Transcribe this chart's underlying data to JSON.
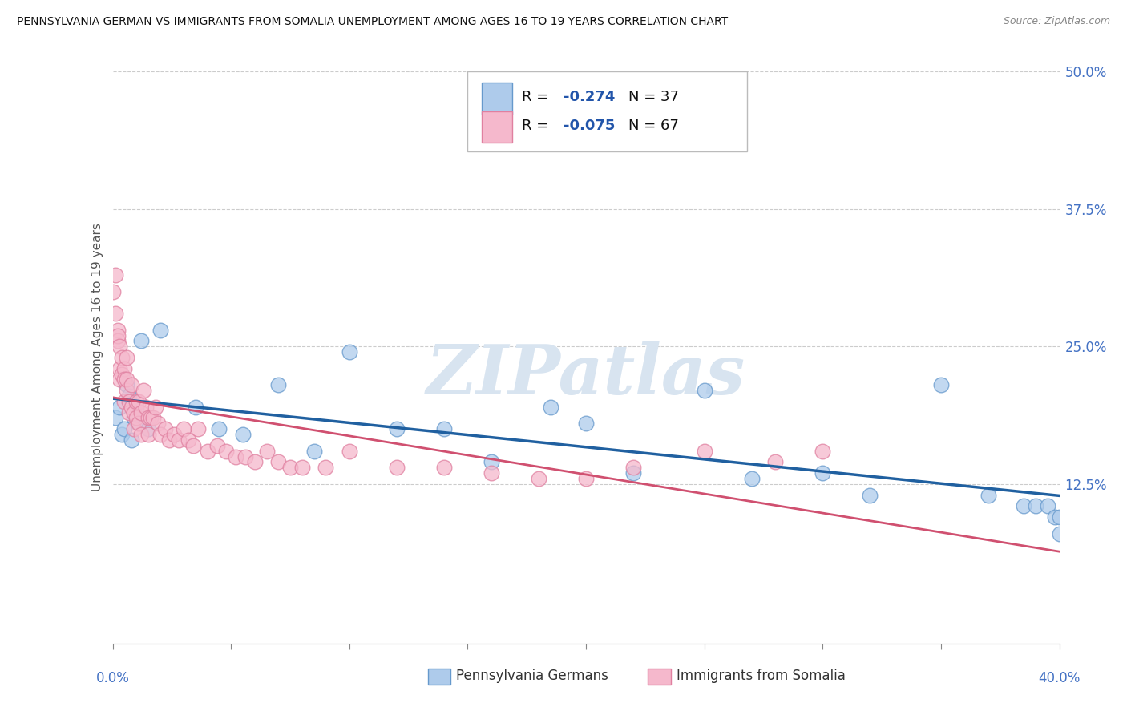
{
  "title": "PENNSYLVANIA GERMAN VS IMMIGRANTS FROM SOMALIA UNEMPLOYMENT AMONG AGES 16 TO 19 YEARS CORRELATION CHART",
  "source": "Source: ZipAtlas.com",
  "ylabel": "Unemployment Among Ages 16 to 19 years",
  "xlim": [
    0.0,
    0.4
  ],
  "ylim": [
    -0.02,
    0.5
  ],
  "ytop": 0.5,
  "ybottom": 0.0,
  "blue_R": -0.274,
  "blue_N": 37,
  "pink_R": -0.075,
  "pink_N": 67,
  "blue_fill": "#AECBEB",
  "pink_fill": "#F5B8CC",
  "blue_edge": "#6699CC",
  "pink_edge": "#E080A0",
  "blue_line": "#2060A0",
  "pink_line": "#D05070",
  "text_blue": "#2255AA",
  "grid_color": "#CCCCCC",
  "watermark_color": "#D8E4F0",
  "right_tick_color": "#4472C4",
  "blue_x": [
    0.001,
    0.003,
    0.004,
    0.005,
    0.006,
    0.007,
    0.008,
    0.009,
    0.01,
    0.011,
    0.012,
    0.015,
    0.02,
    0.035,
    0.045,
    0.055,
    0.07,
    0.085,
    0.1,
    0.12,
    0.14,
    0.16,
    0.185,
    0.2,
    0.22,
    0.25,
    0.27,
    0.3,
    0.32,
    0.35,
    0.37,
    0.385,
    0.39,
    0.395,
    0.398,
    0.4,
    0.4
  ],
  "blue_y": [
    0.185,
    0.195,
    0.17,
    0.175,
    0.215,
    0.205,
    0.165,
    0.185,
    0.195,
    0.18,
    0.255,
    0.175,
    0.265,
    0.195,
    0.175,
    0.17,
    0.215,
    0.155,
    0.245,
    0.175,
    0.175,
    0.145,
    0.195,
    0.18,
    0.135,
    0.21,
    0.13,
    0.135,
    0.115,
    0.215,
    0.115,
    0.105,
    0.105,
    0.105,
    0.095,
    0.095,
    0.08
  ],
  "pink_x": [
    0.0,
    0.001,
    0.001,
    0.002,
    0.002,
    0.002,
    0.003,
    0.003,
    0.003,
    0.004,
    0.004,
    0.005,
    0.005,
    0.005,
    0.006,
    0.006,
    0.006,
    0.007,
    0.007,
    0.008,
    0.008,
    0.009,
    0.009,
    0.01,
    0.01,
    0.011,
    0.011,
    0.012,
    0.012,
    0.013,
    0.014,
    0.015,
    0.015,
    0.016,
    0.017,
    0.018,
    0.019,
    0.02,
    0.022,
    0.024,
    0.026,
    0.028,
    0.03,
    0.032,
    0.034,
    0.036,
    0.04,
    0.044,
    0.048,
    0.052,
    0.056,
    0.06,
    0.065,
    0.07,
    0.075,
    0.08,
    0.09,
    0.1,
    0.12,
    0.14,
    0.16,
    0.18,
    0.2,
    0.22,
    0.25,
    0.28,
    0.3
  ],
  "pink_y": [
    0.3,
    0.315,
    0.28,
    0.265,
    0.255,
    0.26,
    0.25,
    0.23,
    0.22,
    0.24,
    0.225,
    0.23,
    0.22,
    0.2,
    0.24,
    0.21,
    0.22,
    0.2,
    0.19,
    0.215,
    0.195,
    0.19,
    0.175,
    0.2,
    0.185,
    0.2,
    0.18,
    0.19,
    0.17,
    0.21,
    0.195,
    0.185,
    0.17,
    0.185,
    0.185,
    0.195,
    0.18,
    0.17,
    0.175,
    0.165,
    0.17,
    0.165,
    0.175,
    0.165,
    0.16,
    0.175,
    0.155,
    0.16,
    0.155,
    0.15,
    0.15,
    0.145,
    0.155,
    0.145,
    0.14,
    0.14,
    0.14,
    0.155,
    0.14,
    0.14,
    0.135,
    0.13,
    0.13,
    0.14,
    0.155,
    0.145,
    0.155
  ],
  "legend_label_blue": "Pennsylvania Germans",
  "legend_label_pink": "Immigrants from Somalia"
}
